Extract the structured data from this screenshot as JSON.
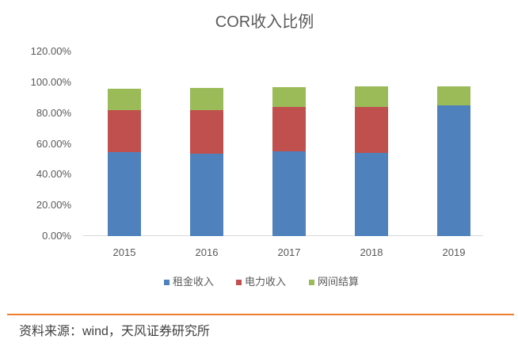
{
  "chart_data": {
    "type": "bar",
    "stacked": true,
    "title": "COR收入比例",
    "xlabel": "",
    "ylabel": "",
    "categories": [
      "2015",
      "2016",
      "2017",
      "2018",
      "2019"
    ],
    "series": [
      {
        "name": "租金收入",
        "color": "#4F81BD",
        "values": [
          54.6,
          53.6,
          55.2,
          54.1,
          85.2
        ]
      },
      {
        "name": "电力收入",
        "color": "#C0504D",
        "values": [
          27.3,
          28.4,
          28.6,
          29.7,
          0.0
        ]
      },
      {
        "name": "网间结算",
        "color": "#9BBB59",
        "values": [
          14.0,
          14.4,
          13.1,
          13.6,
          12.2
        ]
      }
    ],
    "ylim": [
      0,
      120
    ],
    "yticks": [
      "0.00%",
      "20.00%",
      "40.00%",
      "60.00%",
      "80.00%",
      "100.00%",
      "120.00%"
    ],
    "grid": false,
    "legend_position": "bottom"
  },
  "source": {
    "text": "资料来源：wind，天风证券研究所"
  },
  "colors": {
    "divider": "#ED7D31"
  }
}
